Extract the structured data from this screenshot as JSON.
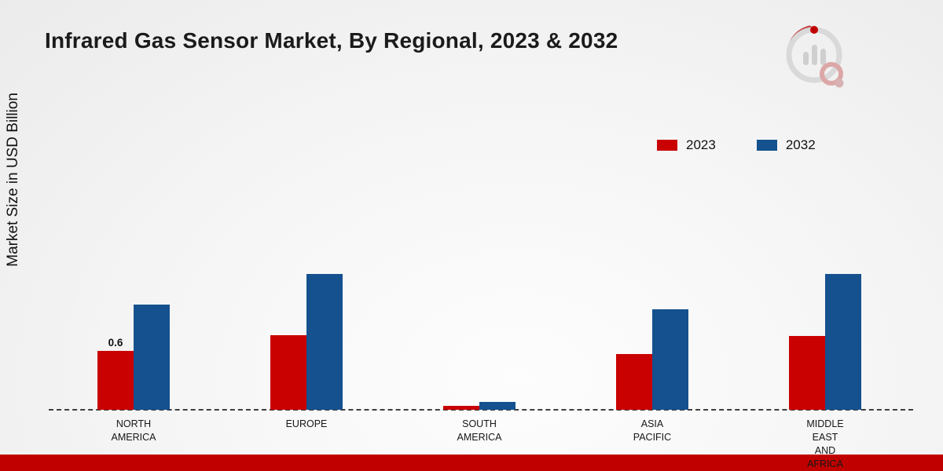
{
  "chart_data": {
    "type": "bar",
    "title": "Infrared Gas Sensor Market, By Regional, 2023 & 2032",
    "ylabel": "Market Size in USD Billion",
    "xlabel": "",
    "categories": [
      "North America",
      "Europe",
      "South America",
      "Asia Pacific",
      "Middle East and Africa"
    ],
    "category_label_lines": [
      [
        "NORTH",
        "AMERICA"
      ],
      [
        "EUROPE"
      ],
      [
        "SOUTH",
        "AMERICA"
      ],
      [
        "ASIA",
        "PACIFIC"
      ],
      [
        "MIDDLE",
        "EAST",
        "AND",
        "AFRICA"
      ]
    ],
    "series": [
      {
        "name": "2023",
        "color": "#c90101",
        "values": [
          0.6,
          0.76,
          0.04,
          0.57,
          0.75
        ]
      },
      {
        "name": "2032",
        "color": "#15518e",
        "values": [
          1.07,
          1.38,
          0.08,
          1.02,
          1.38
        ]
      }
    ],
    "data_labels": [
      {
        "series_index": 0,
        "category_index": 0,
        "text": "0.6"
      }
    ],
    "ylim": [
      0,
      1.6
    ],
    "grid": false,
    "legend_position": "top-right",
    "baseline_style": "dashed"
  },
  "footer": {
    "bar_color": "#c00000"
  },
  "brand": {
    "logo_name": "market-research-logo"
  }
}
